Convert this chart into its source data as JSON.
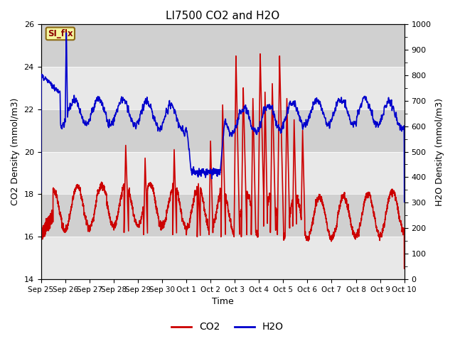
{
  "title": "LI7500 CO2 and H2O",
  "xlabel": "Time",
  "ylabel_left": "CO2 Density (mmol/m3)",
  "ylabel_right": "H2O Density (mmol/m3)",
  "ylim_left": [
    14,
    26
  ],
  "ylim_right": [
    0,
    1000
  ],
  "yticks_left": [
    14,
    16,
    18,
    20,
    22,
    24,
    26
  ],
  "yticks_right": [
    0,
    100,
    200,
    300,
    400,
    500,
    600,
    700,
    800,
    900,
    1000
  ],
  "xtick_labels": [
    "Sep 25",
    "Sep 26",
    "Sep 27",
    "Sep 28",
    "Sep 29",
    "Sep 30",
    "Oct 1",
    "Oct 2",
    "Oct 3",
    "Oct 4",
    "Oct 5",
    "Oct 6",
    "Oct 7",
    "Oct 8",
    "Oct 9",
    "Oct 10"
  ],
  "co2_color": "#cc0000",
  "h2o_color": "#0000cc",
  "annotation_text": "SI_flx",
  "annotation_color": "#8b0000",
  "annotation_bg": "#f5f5a0",
  "annotation_border": "#8b6914",
  "band_light": "#e8e8e8",
  "band_dark": "#d0d0d0",
  "legend_co2": "CO2",
  "legend_h2o": "H2O",
  "line_width": 1.2,
  "figsize": [
    6.4,
    4.8
  ],
  "dpi": 100
}
